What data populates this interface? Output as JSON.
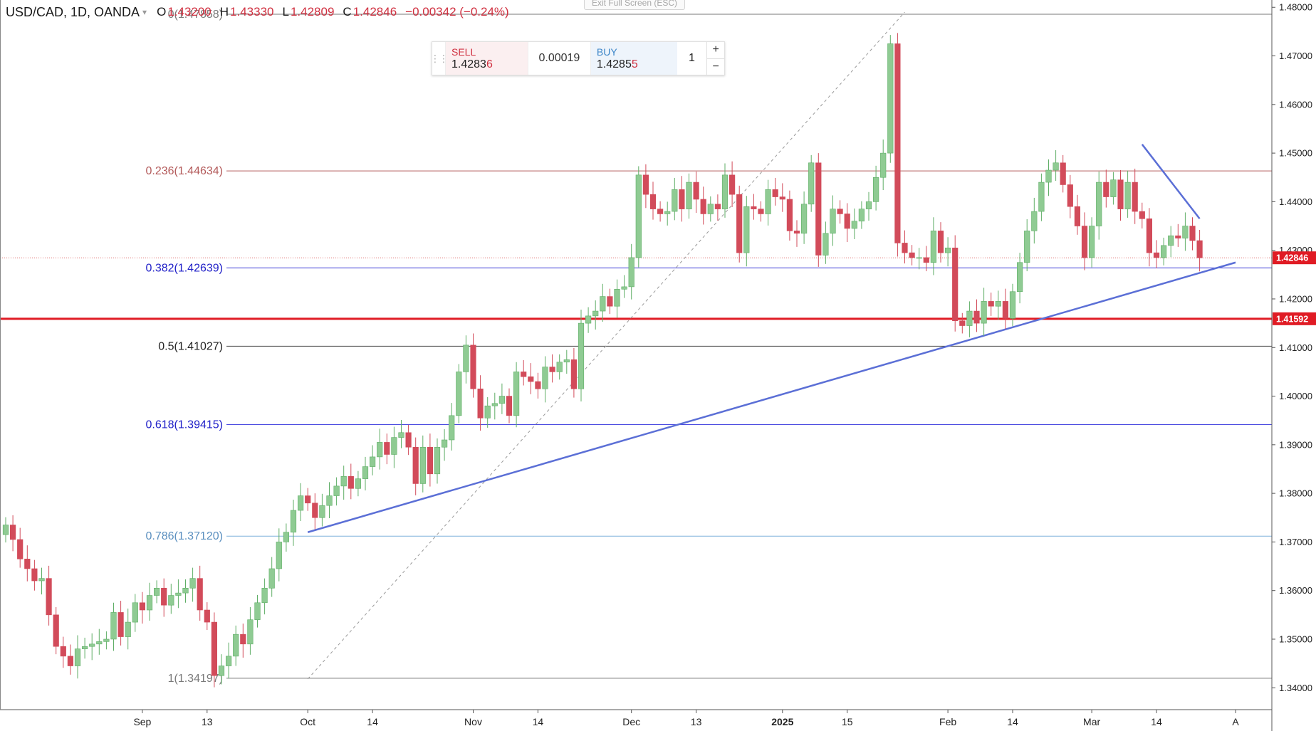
{
  "legend": {
    "symbol": "USD/CAD, 1D, OANDA",
    "open_label": "O",
    "open": "1.43200",
    "high_label": "H",
    "high": "1.43330",
    "low_label": "L",
    "low": "1.42809",
    "close_label": "C",
    "close": "1.42846",
    "change": "−0.00342 (−0.24%)",
    "caret_icon": "chevron-down-icon"
  },
  "toolbar": {
    "exit_fullscreen": "Exit Full Screen (ESC)"
  },
  "trade_panel": {
    "sell_label": "SELL",
    "sell_price_main": "1.4283",
    "sell_price_last": "6",
    "spread": "0.00019",
    "buy_label": "BUY",
    "buy_price_main": "1.4285",
    "buy_price_last": "5",
    "quantity": "1",
    "plus": "+",
    "minus": "−"
  },
  "colors": {
    "up": "#8fcb93",
    "up_border": "#5fae66",
    "down": "#d24b5a",
    "accent_red": "#e01b24",
    "trend_blue": "#5b6fd6"
  },
  "chart_data": {
    "type": "candlestick",
    "y_range": [
      1.3355,
      1.4815
    ],
    "y_ticks": [
      "1.48000",
      "1.47000",
      "1.46000",
      "1.45000",
      "1.44000",
      "1.43000",
      "1.42000",
      "1.41000",
      "1.40000",
      "1.39000",
      "1.38000",
      "1.37000",
      "1.36000",
      "1.35000",
      "1.34000"
    ],
    "x_labels": [
      {
        "label": "Sep",
        "bar": 19
      },
      {
        "label": "13",
        "bar": 28
      },
      {
        "label": "Oct",
        "bar": 42
      },
      {
        "label": "14",
        "bar": 51
      },
      {
        "label": "Nov",
        "bar": 65
      },
      {
        "label": "14",
        "bar": 74
      },
      {
        "label": "Dec",
        "bar": 87
      },
      {
        "label": "13",
        "bar": 96
      },
      {
        "label": "2025",
        "bar": 108
      },
      {
        "label": "15",
        "bar": 117
      },
      {
        "label": "Feb",
        "bar": 131
      },
      {
        "label": "14",
        "bar": 140
      },
      {
        "label": "Mar",
        "bar": 151
      },
      {
        "label": "14",
        "bar": 160
      },
      {
        "label": "A",
        "bar": 171
      }
    ],
    "fib_levels": [
      {
        "label": "0(1.47858)",
        "value": 1.47858,
        "color": "#7a7a7a",
        "text_color": "#7a7a7a"
      },
      {
        "label": "0.236(1.44634)",
        "value": 1.44634,
        "color": "#b35a5a",
        "text_color": "#b35a5a"
      },
      {
        "label": "0.382(1.42639)",
        "value": 1.42639,
        "color": "#3a3ad6",
        "text_color": "#2020c8"
      },
      {
        "label": "0.5(1.41027)",
        "value": 1.41027,
        "color": "#444444",
        "text_color": "#222222"
      },
      {
        "label": "0.618(1.39415)",
        "value": 1.39415,
        "color": "#4a4ae0",
        "text_color": "#2020c8"
      },
      {
        "label": "0.786(1.37120)",
        "value": 1.3712,
        "color": "#7fb0dc",
        "text_color": "#5a8fbf"
      },
      {
        "label": "1(1.34197)",
        "value": 1.34197,
        "color": "#7a7a7a",
        "text_color": "#7a7a7a"
      }
    ],
    "support_line": {
      "value": 1.41592,
      "label": "1.41592",
      "color": "#e01b24"
    },
    "last_price": {
      "value": 1.42846,
      "label": "1.42846",
      "color": "#e01b24"
    },
    "trendlines": [
      {
        "from": [
          42,
          1.3418
        ],
        "to": [
          125,
          1.479
        ],
        "color": "#9a9a9a",
        "dashed": true
      },
      {
        "from": [
          42,
          1.372
        ],
        "to": [
          171,
          1.4275
        ],
        "color": "#5b6fd6",
        "dashed": false
      },
      {
        "from": [
          158,
          1.4518
        ],
        "to": [
          166,
          1.4365
        ],
        "color": "#5b6fd6",
        "dashed": false
      }
    ],
    "closes": [
      1.3735,
      1.3705,
      1.3665,
      1.3645,
      1.362,
      1.3625,
      1.355,
      1.3485,
      1.3465,
      1.3445,
      1.348,
      1.3485,
      1.349,
      1.3495,
      1.35,
      1.3555,
      1.3505,
      1.3535,
      1.3575,
      1.356,
      1.359,
      1.3605,
      1.357,
      1.359,
      1.3595,
      1.3605,
      1.3625,
      1.356,
      1.3535,
      1.3425,
      1.3445,
      1.3465,
      1.351,
      1.349,
      1.354,
      1.3575,
      1.3605,
      1.3645,
      1.37,
      1.372,
      1.3765,
      1.3795,
      1.378,
      1.375,
      1.3775,
      1.3795,
      1.3815,
      1.3835,
      1.381,
      1.383,
      1.3855,
      1.3875,
      1.3905,
      1.388,
      1.3915,
      1.3925,
      1.3895,
      1.382,
      1.3895,
      1.384,
      1.3895,
      1.391,
      1.396,
      1.405,
      1.4105,
      1.4015,
      1.3955,
      1.398,
      1.3985,
      1.4,
      1.396,
      1.405,
      1.404,
      1.403,
      1.4015,
      1.406,
      1.405,
      1.407,
      1.4075,
      1.4015,
      1.415,
      1.4165,
      1.4175,
      1.4205,
      1.4185,
      1.422,
      1.4225,
      1.4285,
      1.4455,
      1.4415,
      1.4385,
      1.4375,
      1.438,
      1.4425,
      1.4385,
      1.444,
      1.4405,
      1.4375,
      1.4395,
      1.4385,
      1.4455,
      1.4415,
      1.4295,
      1.439,
      1.4385,
      1.4375,
      1.4425,
      1.441,
      1.4405,
      1.434,
      1.4335,
      1.4395,
      1.448,
      1.429,
      1.4335,
      1.4385,
      1.4375,
      1.4345,
      1.436,
      1.4385,
      1.44,
      1.445,
      1.45,
      1.4725,
      1.4315,
      1.4295,
      1.4285,
      1.4285,
      1.4275,
      1.434,
      1.4295,
      1.4305,
      1.4155,
      1.4145,
      1.4175,
      1.415,
      1.4195,
      1.4185,
      1.4195,
      1.416,
      1.4215,
      1.4275,
      1.434,
      1.438,
      1.444,
      1.4465,
      1.448,
      1.4435,
      1.439,
      1.435,
      1.4285,
      1.435,
      1.444,
      1.441,
      1.4445,
      1.4385,
      1.444,
      1.438,
      1.4365,
      1.4295,
      1.4285,
      1.431,
      1.433,
      1.4325,
      1.435,
      1.432,
      1.42846
    ],
    "bars_visible": 172
  }
}
